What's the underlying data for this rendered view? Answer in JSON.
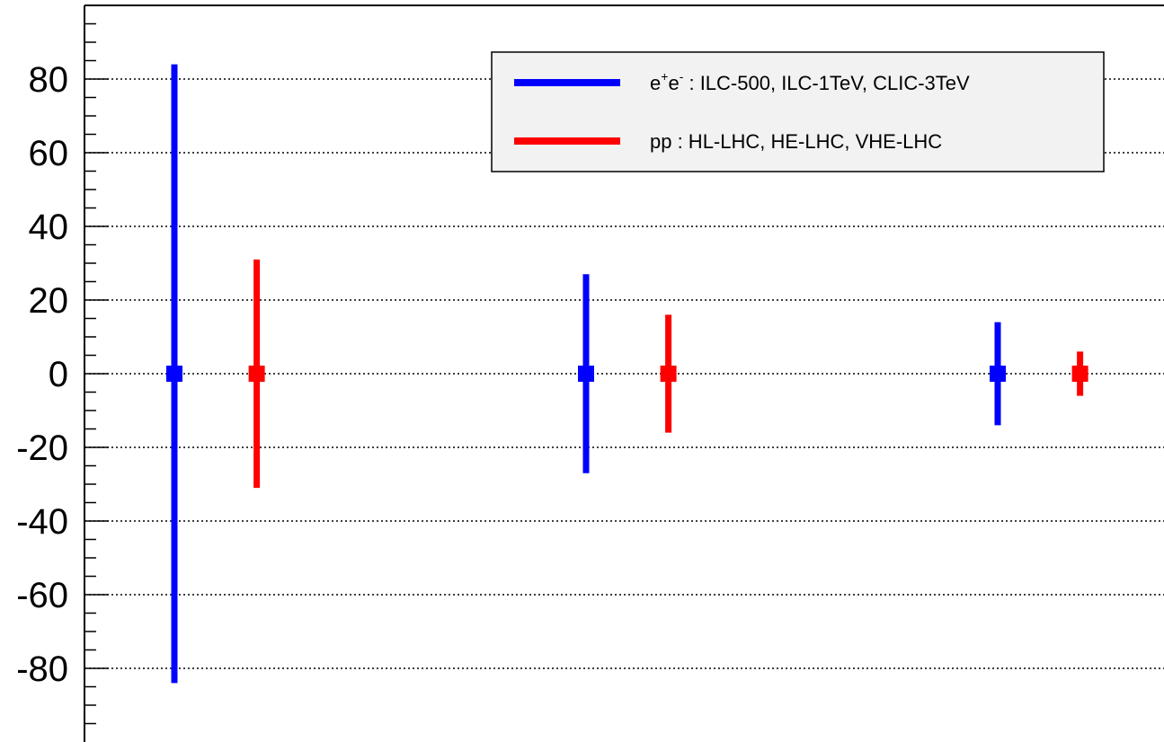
{
  "chart_data": {
    "type": "scatter",
    "title": "",
    "xlabel": "",
    "ylabel": "",
    "ylim": [
      -100,
      100
    ],
    "grid": "horizontal dotted at major y ticks",
    "y_ticks": [
      -80,
      -60,
      -40,
      -20,
      0,
      20,
      40,
      60,
      80
    ],
    "y_tick_labels": [
      "-80",
      "-60",
      "-40",
      "-20",
      "0",
      "20",
      "40",
      "60",
      "80"
    ],
    "legend_position": "top-right",
    "series": [
      {
        "name": "e+e- : ILC-500, ILC-1TeV, CLIC-3TeV",
        "legend_prefix": "e",
        "legend_sup1": "+",
        "legend_mid": "e",
        "legend_sup2": "-",
        "legend_suffix": " : ILC-500, ILC-1TeV, CLIC-3TeV",
        "color": "#0000ff",
        "points": [
          {
            "x": 1.0,
            "y": 0,
            "err": 84
          },
          {
            "x": 3.5,
            "y": 0,
            "err": 27
          },
          {
            "x": 6.0,
            "y": 0,
            "err": 14
          }
        ]
      },
      {
        "name": "pp : HL-LHC, HE-LHC, VHE-LHC",
        "legend_label": "pp : HL-LHC, HE-LHC, VHE-LHC",
        "color": "#ff0000",
        "points": [
          {
            "x": 1.5,
            "y": 0,
            "err": 31
          },
          {
            "x": 4.0,
            "y": 0,
            "err": 16
          },
          {
            "x": 6.5,
            "y": 0,
            "err": 6
          }
        ]
      }
    ]
  }
}
